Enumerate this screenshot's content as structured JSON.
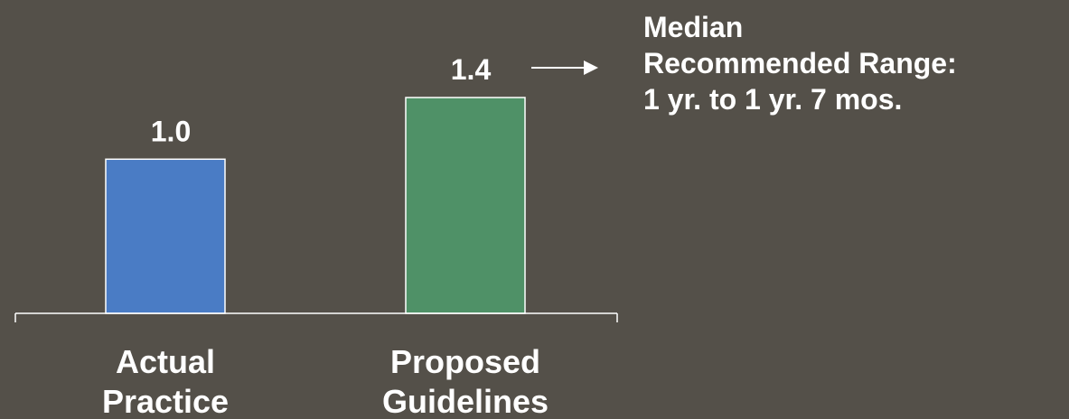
{
  "chart_data": {
    "type": "bar",
    "categories": [
      [
        "Actual",
        "Practice"
      ],
      [
        "Proposed",
        "Guidelines"
      ]
    ],
    "values": [
      1.0,
      1.4
    ],
    "value_labels": [
      "1.0",
      "1.4"
    ],
    "bar_colors": [
      "#4a7cc5",
      "#4f9167"
    ],
    "ylim": [
      0,
      1.4
    ],
    "title": "",
    "xlabel": "",
    "ylabel": "",
    "grid": false,
    "annotation": {
      "lines": [
        "Median",
        "Recommended Range:",
        "1 yr.  to  1 yr. 7 mos."
      ],
      "points_to": "1.4"
    }
  }
}
